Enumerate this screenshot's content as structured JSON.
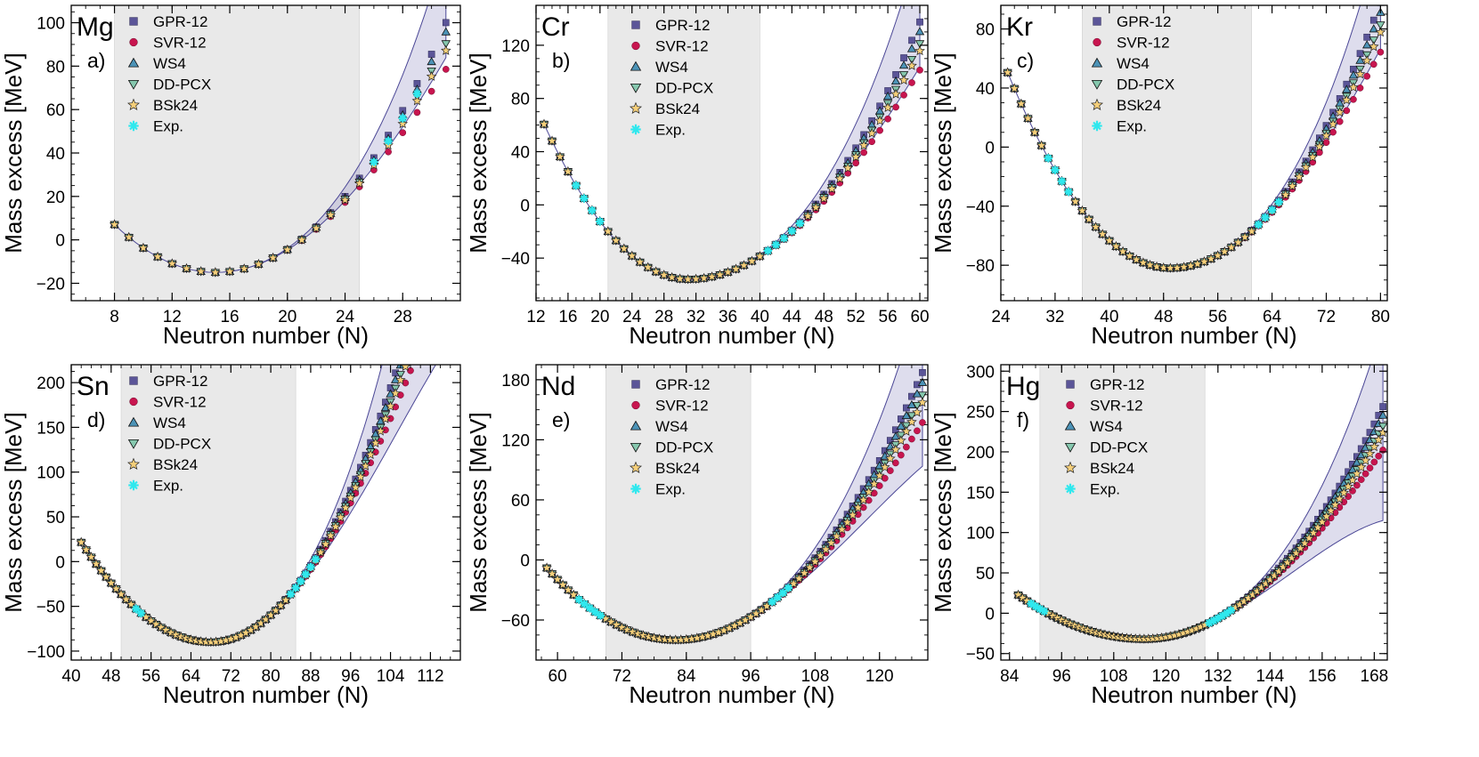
{
  "figure": {
    "xlabel": "Neutron number (N)",
    "ylabel": "Mass excess [MeV]",
    "legend_entries": [
      "GPR-12",
      "SVR-12",
      "WS4",
      "DD-PCX",
      "BSk24",
      "Exp."
    ]
  },
  "colors": {
    "gpr": "#5b5598",
    "svr": "#c8154f",
    "ws4": "#4c93b7",
    "ddpcx": "#86c8ae",
    "bsk24": "#f5cf7a",
    "exp": "#2fe8ee",
    "band": "#8a86c0",
    "band_line": "#4b4796",
    "shade": "#e9e9e9"
  },
  "chart_data": [
    {
      "type": "scatter",
      "element": "Mg",
      "panel_label": "a)",
      "xlim": [
        5,
        32
      ],
      "ylim": [
        -28,
        108
      ],
      "xticks": [
        8,
        12,
        16,
        20,
        24,
        28
      ],
      "yticks": [
        -20,
        0,
        20,
        40,
        60,
        80,
        100
      ],
      "shaded_region": [
        8,
        25
      ],
      "n_range": [
        8,
        31
      ],
      "vertex": 15,
      "a_left": 0.45,
      "a_right": 0.42,
      "e_min": -15,
      "exp_range": [
        26,
        29
      ],
      "band_up": 0.14,
      "band_down": 0.04,
      "legend_pos": "top-left"
    },
    {
      "type": "scatter",
      "element": "Cr",
      "panel_label": "b)",
      "xlim": [
        12,
        61
      ],
      "ylim": [
        -72,
        150
      ],
      "xticks": [
        12,
        16,
        20,
        24,
        28,
        32,
        36,
        40,
        44,
        48,
        52,
        56,
        60
      ],
      "yticks": [
        -40,
        0,
        40,
        80,
        120
      ],
      "shaded_region": [
        21,
        40
      ],
      "n_range": [
        13,
        60
      ],
      "vertex": 31,
      "a_left": 0.36,
      "a_right": 0.215,
      "e_min": -56,
      "exp_range": [
        17,
        20
      ],
      "exp_range_2": [
        41,
        45
      ],
      "band_up": 0.14,
      "band_down": 0.05,
      "legend_pos": "top-center"
    },
    {
      "type": "scatter",
      "element": "Kr",
      "panel_label": "c)",
      "xlim": [
        24,
        81
      ],
      "ylim": [
        -104,
        96
      ],
      "xticks": [
        24,
        32,
        40,
        48,
        56,
        64,
        72,
        80
      ],
      "yticks": [
        -80,
        -40,
        0,
        40,
        80
      ],
      "shaded_region": [
        36,
        61
      ],
      "n_range": [
        25,
        80
      ],
      "vertex": 49,
      "a_left": 0.23,
      "a_right": 0.175,
      "e_min": -82,
      "exp_range": [
        31,
        34
      ],
      "exp_range_2": [
        62,
        65
      ],
      "band_up": 0.12,
      "band_down": 0.05,
      "legend_pos": "top-center"
    },
    {
      "type": "scatter",
      "element": "Sn",
      "panel_label": "d)",
      "xlim": [
        40,
        118
      ],
      "ylim": [
        -110,
        220
      ],
      "xticks": [
        40,
        48,
        56,
        64,
        72,
        80,
        88,
        96,
        104,
        112
      ],
      "yticks": [
        -100,
        -50,
        0,
        50,
        100,
        150,
        200
      ],
      "shaded_region": [
        50,
        85
      ],
      "n_range": [
        42,
        116
      ],
      "vertex": 68,
      "a_left": 0.165,
      "a_right": 0.21,
      "e_min": -90,
      "exp_range": [
        53,
        54
      ],
      "exp_range_2": [
        84,
        89
      ],
      "band_up": 0.16,
      "band_down": 0.1,
      "legend_pos": "top-left"
    },
    {
      "type": "scatter",
      "element": "Nd",
      "panel_label": "e)",
      "xlim": [
        56,
        129
      ],
      "ylim": [
        -100,
        195
      ],
      "xticks": [
        60,
        72,
        84,
        96,
        108,
        120
      ],
      "yticks": [
        -60,
        0,
        60,
        120,
        180
      ],
      "shaded_region": [
        69,
        96
      ],
      "n_range": [
        58,
        128
      ],
      "vertex": 82,
      "a_left": 0.125,
      "a_right": 0.118,
      "e_min": -80,
      "exp_range": [
        64,
        68
      ],
      "exp_range_2": [
        100,
        103
      ],
      "band_up": 0.14,
      "band_down": 0.1,
      "legend_pos": "top-center"
    },
    {
      "type": "scatter",
      "element": "Hg",
      "panel_label": "f)",
      "xlim": [
        82,
        171
      ],
      "ylim": [
        -58,
        308
      ],
      "xticks": [
        84,
        96,
        108,
        120,
        132,
        144,
        156,
        168
      ],
      "yticks": [
        -50,
        0,
        50,
        100,
        150,
        200,
        250,
        300
      ],
      "shaded_region": [
        91,
        129
      ],
      "n_range": [
        86,
        170
      ],
      "vertex": 115,
      "a_left": 0.065,
      "a_right": 0.089,
      "e_min": -32,
      "exp_range": [
        89,
        92
      ],
      "exp_range_2": [
        130,
        135
      ],
      "band_up": 0.16,
      "band_down": 0.14,
      "legend_pos": "top-left"
    }
  ]
}
